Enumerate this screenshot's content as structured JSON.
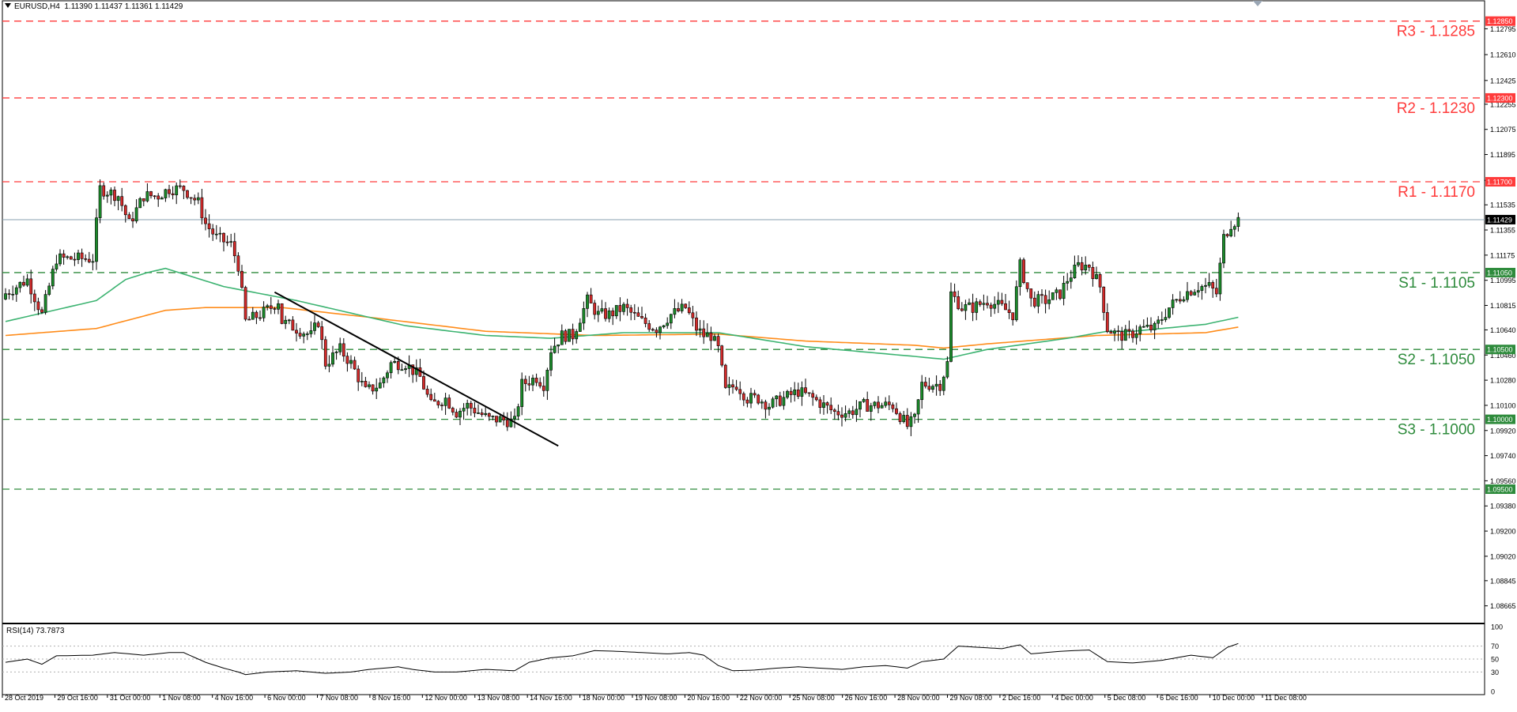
{
  "header": {
    "symbol": "EURUSD,H4",
    "ohlc": "1.11390 1.11437 1.11361 1.11429"
  },
  "rsi_header": "RSI(14) 73.7873",
  "colors": {
    "bull": "#1b8b2a",
    "bear": "#d32a2a",
    "resistance": "#ff3b3b",
    "support": "#2e8b3c",
    "ma_fast": "#3cb371",
    "ma_slow": "#ff8c1a",
    "trendline": "#000000",
    "price_line": "#8aa0b0"
  },
  "chart_data": [
    {
      "type": "candlestick",
      "title": "EURUSD,H4",
      "y_range": [
        1.0855,
        1.1295
      ],
      "y_ticks": [
        "1.12795",
        "1.12610",
        "1.12425",
        "1.12255",
        "1.12075",
        "1.11895",
        "1.11710",
        "1.11535",
        "1.11355",
        "1.11175",
        "1.10995",
        "1.10815",
        "1.10640",
        "1.10460",
        "1.10280",
        "1.10100",
        "1.09920",
        "1.09740",
        "1.09560",
        "1.09380",
        "1.09200",
        "1.09020",
        "1.08845",
        "1.08665"
      ],
      "x_labels": [
        "28 Oct 2019",
        "29 Oct 16:00",
        "31 Oct 00:00",
        "1 Nov 08:00",
        "4 Nov 16:00",
        "6 Nov 00:00",
        "7 Nov 08:00",
        "8 Nov 16:00",
        "12 Nov 00:00",
        "13 Nov 08:00",
        "14 Nov 16:00",
        "18 Nov 00:00",
        "19 Nov 08:00",
        "20 Nov 16:00",
        "22 Nov 00:00",
        "25 Nov 08:00",
        "26 Nov 16:00",
        "28 Nov 00:00",
        "29 Nov 08:00",
        "2 Dec 16:00",
        "4 Dec 00:00",
        "5 Dec 08:00",
        "6 Dec 16:00",
        "10 Dec 00:00",
        "11 Dec 08:00"
      ],
      "levels": [
        {
          "label": "R3 - 1.1285",
          "price": 1.1285,
          "tag": "1.12850",
          "kind": "resistance"
        },
        {
          "label": "R2 - 1.1230",
          "price": 1.123,
          "tag": "1.12300",
          "kind": "resistance"
        },
        {
          "label": "R1 - 1.1170",
          "price": 1.117,
          "tag": "1.11700",
          "kind": "resistance"
        },
        {
          "label": "S1 - 1.1105",
          "price": 1.1105,
          "tag": "1.11050",
          "kind": "support"
        },
        {
          "label": "S2 - 1.1050",
          "price": 1.105,
          "tag": "1.10500",
          "kind": "support"
        },
        {
          "label": "S3 - 1.1000",
          "price": 1.1,
          "tag": "1.10000",
          "kind": "support"
        },
        {
          "label": "",
          "price": 1.095,
          "tag": "1.09500",
          "kind": "support"
        }
      ],
      "current_price": {
        "price": 1.11429,
        "tag": "1.11429"
      },
      "trendline": {
        "start": [
          74,
          1.1091
        ],
        "end": [
          152,
          1.0981
        ]
      },
      "close_path": [
        [
          0,
          1.109
        ],
        [
          6,
          1.11
        ],
        [
          10,
          1.1075
        ],
        [
          14,
          1.1115
        ],
        [
          20,
          1.1115
        ],
        [
          24,
          1.1115
        ],
        [
          26,
          1.1165
        ],
        [
          31,
          1.116
        ],
        [
          34,
          1.114
        ],
        [
          38,
          1.116
        ],
        [
          42,
          1.116
        ],
        [
          45,
          1.1165
        ],
        [
          49,
          1.1165
        ],
        [
          53,
          1.1155
        ],
        [
          55,
          1.114
        ],
        [
          58,
          1.113
        ],
        [
          62,
          1.1125
        ],
        [
          64,
          1.111
        ],
        [
          66,
          1.107
        ],
        [
          70,
          1.1075
        ],
        [
          73,
          1.108
        ],
        [
          75,
          1.1085
        ],
        [
          76,
          1.107
        ],
        [
          80,
          1.1065
        ],
        [
          84,
          1.106
        ],
        [
          86,
          1.107
        ],
        [
          88,
          1.104
        ],
        [
          92,
          1.105
        ],
        [
          95,
          1.104
        ],
        [
          97,
          1.103
        ],
        [
          99,
          1.102
        ],
        [
          103,
          1.1025
        ],
        [
          106,
          1.104
        ],
        [
          110,
          1.104
        ],
        [
          114,
          1.103
        ],
        [
          117,
          1.101
        ],
        [
          121,
          1.1015
        ],
        [
          124,
          1.1005
        ],
        [
          127,
          1.101
        ],
        [
          130,
          1.1005
        ],
        [
          133,
          1.1
        ],
        [
          136,
          1.1
        ],
        [
          140,
          1.0998
        ],
        [
          142,
          1.1025
        ],
        [
          146,
          1.103
        ],
        [
          148,
          1.1025
        ],
        [
          150,
          1.105
        ],
        [
          153,
          1.106
        ],
        [
          156,
          1.106
        ],
        [
          160,
          1.1085
        ],
        [
          163,
          1.1075
        ],
        [
          166,
          1.1075
        ],
        [
          170,
          1.108
        ],
        [
          175,
          1.107
        ],
        [
          179,
          1.1065
        ],
        [
          183,
          1.1075
        ],
        [
          187,
          1.108
        ],
        [
          190,
          1.1065
        ],
        [
          192,
          1.106
        ],
        [
          194,
          1.106
        ],
        [
          196,
          1.105
        ],
        [
          198,
          1.102
        ],
        [
          201,
          1.1025
        ],
        [
          204,
          1.1015
        ],
        [
          207,
          1.1015
        ],
        [
          210,
          1.101
        ],
        [
          214,
          1.1015
        ],
        [
          218,
          1.102
        ],
        [
          222,
          1.1015
        ],
        [
          225,
          1.101
        ],
        [
          228,
          1.1005
        ],
        [
          232,
          1.1005
        ],
        [
          236,
          1.101
        ],
        [
          240,
          1.101
        ],
        [
          244,
          1.101
        ],
        [
          248,
          1.0995
        ],
        [
          250,
          1.1
        ],
        [
          252,
          1.1025
        ],
        [
          255,
          1.1025
        ],
        [
          257,
          1.1025
        ],
        [
          259,
          1.104
        ],
        [
          260,
          1.109
        ],
        [
          263,
          1.108
        ],
        [
          266,
          1.108
        ],
        [
          270,
          1.1085
        ],
        [
          274,
          1.108
        ],
        [
          277,
          1.1075
        ],
        [
          279,
          1.111
        ],
        [
          282,
          1.1085
        ],
        [
          286,
          1.1085
        ],
        [
          290,
          1.109
        ],
        [
          292,
          1.11
        ],
        [
          295,
          1.111
        ],
        [
          298,
          1.111
        ],
        [
          301,
          1.1095
        ],
        [
          303,
          1.1065
        ],
        [
          306,
          1.106
        ],
        [
          309,
          1.106
        ],
        [
          312,
          1.1065
        ],
        [
          316,
          1.1065
        ],
        [
          320,
          1.108
        ],
        [
          324,
          1.109
        ],
        [
          328,
          1.1095
        ],
        [
          331,
          1.1095
        ],
        [
          333,
          1.109
        ],
        [
          335,
          1.113
        ],
        [
          337,
          1.114
        ],
        [
          339,
          1.1143
        ]
      ],
      "ema_fast": [
        [
          0,
          1.107
        ],
        [
          25,
          1.1085
        ],
        [
          33,
          1.11
        ],
        [
          39,
          1.1105
        ],
        [
          44,
          1.1108
        ],
        [
          60,
          1.1095
        ],
        [
          80,
          1.1085
        ],
        [
          110,
          1.1067
        ],
        [
          132,
          1.106
        ],
        [
          150,
          1.1058
        ],
        [
          170,
          1.1062
        ],
        [
          196,
          1.1062
        ],
        [
          220,
          1.1052
        ],
        [
          250,
          1.1045
        ],
        [
          258,
          1.1043
        ],
        [
          270,
          1.105
        ],
        [
          292,
          1.1058
        ],
        [
          303,
          1.1063
        ],
        [
          310,
          1.1063
        ],
        [
          330,
          1.1068
        ],
        [
          339,
          1.1073
        ]
      ],
      "ema_slow": [
        [
          0,
          1.106
        ],
        [
          25,
          1.1065
        ],
        [
          44,
          1.1078
        ],
        [
          55,
          1.108
        ],
        [
          76,
          1.108
        ],
        [
          100,
          1.1073
        ],
        [
          132,
          1.1063
        ],
        [
          162,
          1.106
        ],
        [
          196,
          1.1061
        ],
        [
          220,
          1.1056
        ],
        [
          250,
          1.1053
        ],
        [
          258,
          1.1051
        ],
        [
          270,
          1.1054
        ],
        [
          300,
          1.106
        ],
        [
          330,
          1.1062
        ],
        [
          339,
          1.1066
        ]
      ]
    },
    {
      "type": "line",
      "title": "RSI(14) 73.7873",
      "y_range": [
        0,
        100
      ],
      "y_ticks": [
        "100",
        "70",
        "50",
        "30",
        "0"
      ],
      "levels": [
        70,
        50,
        30
      ],
      "values": [
        [
          0,
          45
        ],
        [
          6,
          50
        ],
        [
          10,
          42
        ],
        [
          14,
          55
        ],
        [
          24,
          56
        ],
        [
          30,
          60
        ],
        [
          38,
          56
        ],
        [
          45,
          60
        ],
        [
          49,
          60
        ],
        [
          55,
          45
        ],
        [
          60,
          36
        ],
        [
          64,
          30
        ],
        [
          66,
          26
        ],
        [
          72,
          30
        ],
        [
          80,
          32
        ],
        [
          88,
          28
        ],
        [
          95,
          30
        ],
        [
          100,
          34
        ],
        [
          108,
          38
        ],
        [
          112,
          34
        ],
        [
          118,
          30
        ],
        [
          124,
          30
        ],
        [
          132,
          34
        ],
        [
          140,
          32
        ],
        [
          144,
          45
        ],
        [
          150,
          52
        ],
        [
          156,
          55
        ],
        [
          162,
          63
        ],
        [
          168,
          62
        ],
        [
          175,
          60
        ],
        [
          182,
          58
        ],
        [
          188,
          60
        ],
        [
          192,
          56
        ],
        [
          196,
          40
        ],
        [
          200,
          32
        ],
        [
          206,
          33
        ],
        [
          212,
          36
        ],
        [
          218,
          38
        ],
        [
          224,
          36
        ],
        [
          230,
          34
        ],
        [
          236,
          38
        ],
        [
          242,
          40
        ],
        [
          248,
          36
        ],
        [
          252,
          46
        ],
        [
          258,
          50
        ],
        [
          262,
          70
        ],
        [
          268,
          68
        ],
        [
          274,
          66
        ],
        [
          279,
          72
        ],
        [
          282,
          58
        ],
        [
          290,
          62
        ],
        [
          298,
          64
        ],
        [
          303,
          46
        ],
        [
          310,
          44
        ],
        [
          318,
          48
        ],
        [
          326,
          56
        ],
        [
          332,
          52
        ],
        [
          336,
          68
        ],
        [
          339,
          74
        ]
      ]
    }
  ]
}
